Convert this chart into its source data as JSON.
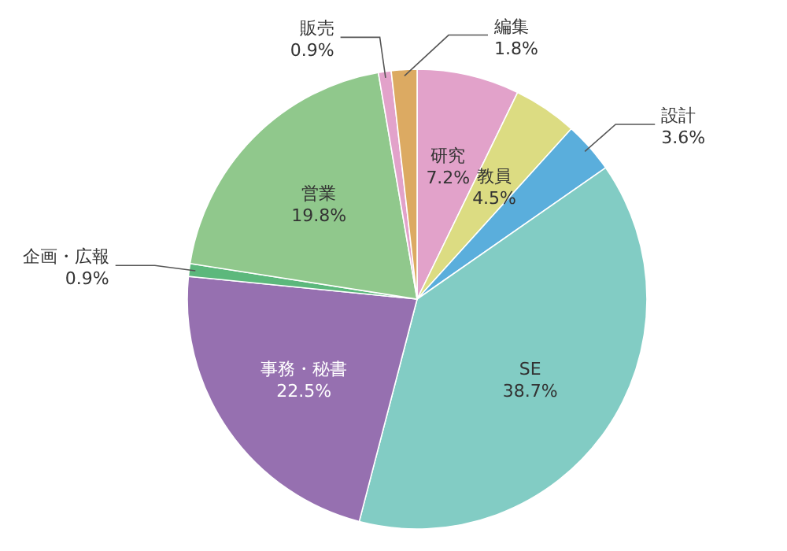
{
  "chart_data": {
    "type": "pie",
    "categories": [
      "研究",
      "教員",
      "設計",
      "SE",
      "事務・秘書",
      "企画・広報",
      "営業",
      "販売",
      "編集"
    ],
    "values": [
      7.2,
      4.5,
      3.6,
      38.7,
      22.5,
      0.9,
      19.8,
      0.9,
      1.8
    ],
    "colors": [
      "#e2a2ca",
      "#dcdc82",
      "#5aaedc",
      "#82ccc4",
      "#9670b0",
      "#5cb87c",
      "#90c88c",
      "#e2a2ca",
      "#dcaa62"
    ],
    "value_labels": [
      "7.2%",
      "4.5%",
      "3.6%",
      "38.7%",
      "22.5%",
      "0.9%",
      "19.8%",
      "0.9%",
      "1.8%"
    ]
  }
}
